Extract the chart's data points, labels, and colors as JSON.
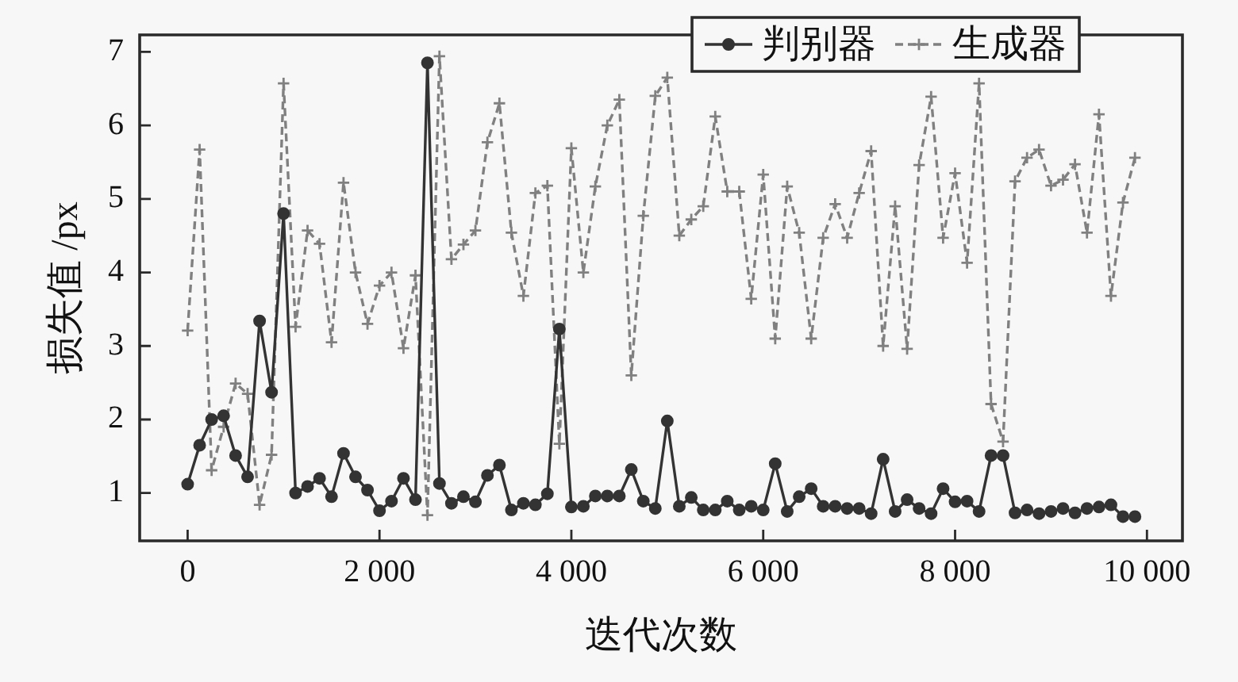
{
  "chart_data": {
    "type": "line",
    "xlabel": "迭代次数",
    "ylabel": "损失值 /px",
    "x": [
      0,
      125,
      250,
      375,
      500,
      625,
      750,
      875,
      1000,
      1125,
      1250,
      1375,
      1500,
      1625,
      1750,
      1875,
      2000,
      2125,
      2250,
      2375,
      2500,
      2625,
      2750,
      2875,
      3000,
      3125,
      3250,
      3375,
      3500,
      3625,
      3750,
      3875,
      4000,
      4125,
      4250,
      4375,
      4500,
      4625,
      4750,
      4875,
      5000,
      5125,
      5250,
      5375,
      5500,
      5625,
      5750,
      5875,
      6000,
      6125,
      6250,
      6375,
      6500,
      6625,
      6750,
      6875,
      7000,
      7125,
      7250,
      7375,
      7500,
      7625,
      7750,
      7875,
      8000,
      8125,
      8250,
      8375,
      8500,
      8625,
      8750,
      8875,
      9000,
      9125,
      9250,
      9375,
      9500,
      9625,
      9750,
      9875
    ],
    "series": [
      {
        "name": "判别器",
        "color": "#333333",
        "marker": "circle",
        "line_style": "solid",
        "values": [
          1.12,
          1.65,
          2.0,
          2.05,
          1.51,
          1.22,
          3.34,
          2.37,
          4.8,
          1.0,
          1.09,
          1.2,
          0.95,
          1.54,
          1.22,
          1.04,
          0.76,
          0.89,
          1.2,
          0.91,
          6.85,
          1.13,
          0.86,
          0.95,
          0.88,
          1.24,
          1.38,
          0.77,
          0.86,
          0.84,
          0.99,
          3.23,
          0.81,
          0.82,
          0.96,
          0.96,
          0.96,
          1.32,
          0.89,
          0.79,
          1.98,
          0.82,
          0.94,
          0.77,
          0.77,
          0.89,
          0.77,
          0.82,
          0.77,
          1.4,
          0.75,
          0.95,
          1.06,
          0.82,
          0.82,
          0.79,
          0.79,
          0.72,
          1.46,
          0.75,
          0.91,
          0.79,
          0.72,
          1.06,
          0.88,
          0.89,
          0.75,
          1.51,
          1.51,
          0.73,
          0.77,
          0.72,
          0.75,
          0.79,
          0.73,
          0.79,
          0.81,
          0.84,
          0.68,
          0.68
        ]
      },
      {
        "name": "生成器",
        "color": "#808080",
        "marker": "cross",
        "line_style": "dashed",
        "values": [
          3.21,
          5.67,
          1.31,
          1.9,
          2.49,
          2.35,
          0.84,
          1.52,
          6.57,
          3.26,
          4.57,
          4.39,
          3.05,
          5.22,
          4.0,
          3.3,
          3.82,
          4.0,
          2.97,
          3.96,
          0.7,
          6.94,
          4.18,
          4.38,
          4.57,
          5.77,
          6.3,
          4.54,
          3.68,
          5.08,
          5.18,
          1.67,
          5.69,
          4.0,
          5.17,
          6.0,
          6.35,
          2.6,
          4.77,
          6.4,
          6.65,
          4.5,
          4.72,
          4.9,
          6.12,
          5.1,
          5.1,
          3.64,
          5.33,
          3.1,
          5.17,
          4.54,
          3.1,
          4.47,
          4.93,
          4.47,
          5.08,
          5.65,
          3.0,
          4.9,
          2.96,
          5.46,
          6.39,
          4.47,
          5.35,
          4.13,
          6.57,
          2.21,
          1.7,
          5.24,
          5.56,
          5.67,
          5.18,
          5.26,
          5.47,
          4.54,
          6.15,
          3.68,
          4.95,
          5.56
        ]
      }
    ],
    "xlim": [
      -500,
      10370
    ],
    "ylim": [
      0.35,
      7.23
    ],
    "xticks": [
      0,
      {
        "value": 2000,
        "label": "2 000"
      },
      {
        "value": 4000,
        "label": "4 000"
      },
      {
        "value": 6000,
        "label": "6 000"
      },
      {
        "value": 8000,
        "label": "8 000"
      },
      {
        "value": 10000,
        "label": "10 000"
      }
    ],
    "yticks": [
      1,
      2,
      3,
      4,
      5,
      6,
      7
    ],
    "legend": "top right",
    "grid": false
  }
}
